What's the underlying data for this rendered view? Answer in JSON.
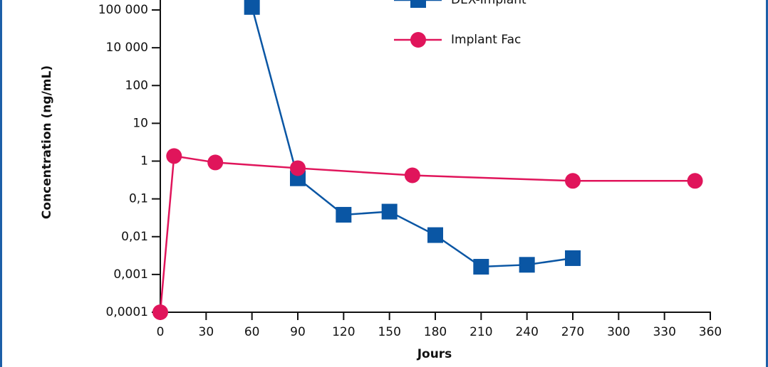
{
  "chart_data": {
    "type": "line",
    "xlabel": "Jours",
    "ylabel": "Concentration (ng/mL)",
    "xlim": [
      0,
      360
    ],
    "xticks": [
      0,
      30,
      60,
      90,
      120,
      150,
      180,
      210,
      240,
      270,
      300,
      330,
      360
    ],
    "yscale": "log",
    "ylim": [
      0.0001,
      100000
    ],
    "yticks": [
      {
        "value": 0.0001,
        "label": "0,0001"
      },
      {
        "value": 0.001,
        "label": "0,001"
      },
      {
        "value": 0.01,
        "label": "0,01"
      },
      {
        "value": 0.1,
        "label": "0,1"
      },
      1,
      10,
      100,
      {
        "value": 10000,
        "label": "10 000"
      },
      {
        "value": 100000,
        "label": "100 000"
      }
    ],
    "series": [
      {
        "name": "DEX-Implant",
        "color": "#0a56a4",
        "marker": "square",
        "x": [
          60,
          90,
          120,
          150,
          180,
          210,
          240,
          270
        ],
        "values": [
          120000,
          0.35,
          0.038,
          0.046,
          0.011,
          0.0016,
          0.0018,
          0.0027
        ]
      },
      {
        "name": "Implant Fac",
        "color": "#e0155b",
        "marker": "circle",
        "x": [
          0,
          9,
          36,
          90,
          165,
          270,
          350
        ],
        "values": [
          0.0001,
          1.36,
          0.92,
          0.65,
          0.42,
          0.3,
          0.3
        ]
      }
    ]
  }
}
